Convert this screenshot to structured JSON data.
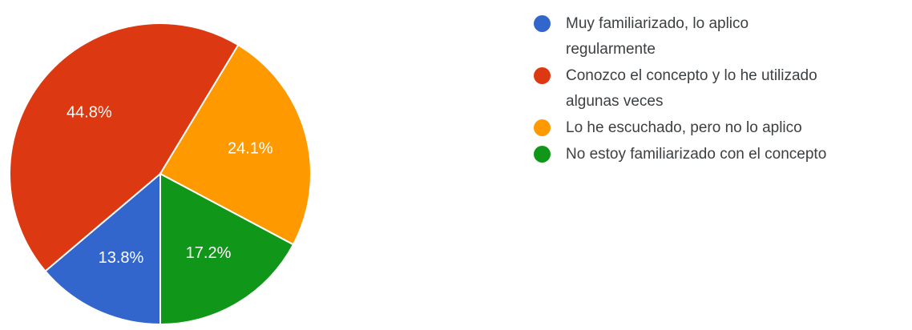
{
  "chart_data": {
    "type": "pie",
    "categories": [
      "Muy familiarizado, lo aplico regularmente",
      "Conozco el concepto y lo he utilizado algunas veces",
      "Lo he escuchado, pero no lo aplico",
      "No estoy familiarizado con el concepto"
    ],
    "values": [
      13.8,
      44.8,
      24.1,
      17.2
    ],
    "data_labels": [
      "13.8%",
      "44.8%",
      "24.1%",
      "17.2%"
    ],
    "colors": [
      "#3366cc",
      "#dc3912",
      "#ff9900",
      "#109618"
    ],
    "start_angle_deg": 90,
    "direction": "clockwise",
    "legend_position": "right"
  },
  "legend": {
    "items": [
      {
        "lines": [
          "Muy familiarizado, lo aplico",
          "regularmente"
        ],
        "color": "#3366cc"
      },
      {
        "lines": [
          "Conozco el concepto y lo he utilizado",
          "algunas veces"
        ],
        "color": "#dc3912"
      },
      {
        "lines": [
          "Lo he escuchado, pero no lo aplico"
        ],
        "color": "#ff9900"
      },
      {
        "lines": [
          "No estoy familiarizado con el concepto"
        ],
        "color": "#109618"
      }
    ]
  }
}
